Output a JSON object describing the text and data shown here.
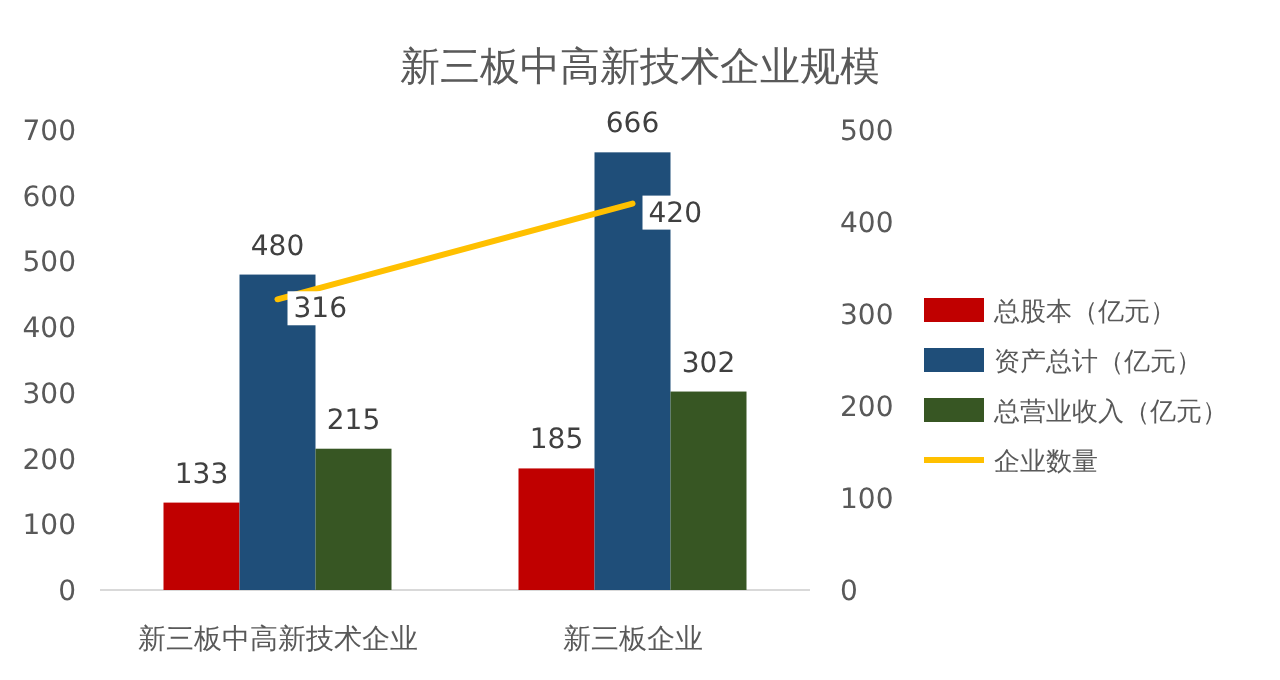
{
  "chart_data": {
    "type": "bar",
    "title": "新三板中高新技术企业规模",
    "categories": [
      "新三板中高新技术企业",
      "新三板企业"
    ],
    "series": [
      {
        "name": "总股本（亿元）",
        "color": "#c00000",
        "values": [
          133,
          185
        ]
      },
      {
        "name": "资产总计（亿元）",
        "color": "#1f4e79",
        "values": [
          480,
          666
        ]
      },
      {
        "name": "总营业收入（亿元）",
        "color": "#375623",
        "values": [
          215,
          302
        ]
      },
      {
        "name": "企业数量",
        "color": "#ffc000",
        "values": [
          316,
          420
        ],
        "type": "line",
        "axis": "y2"
      }
    ],
    "ylim": [
      0,
      700
    ],
    "yticks": [
      0,
      100,
      200,
      300,
      400,
      500,
      600,
      700
    ],
    "y2lim": [
      0,
      500
    ],
    "y2ticks": [
      0,
      100,
      200,
      300,
      400,
      500
    ],
    "data_labels": true,
    "legend": "right",
    "grid": false
  }
}
